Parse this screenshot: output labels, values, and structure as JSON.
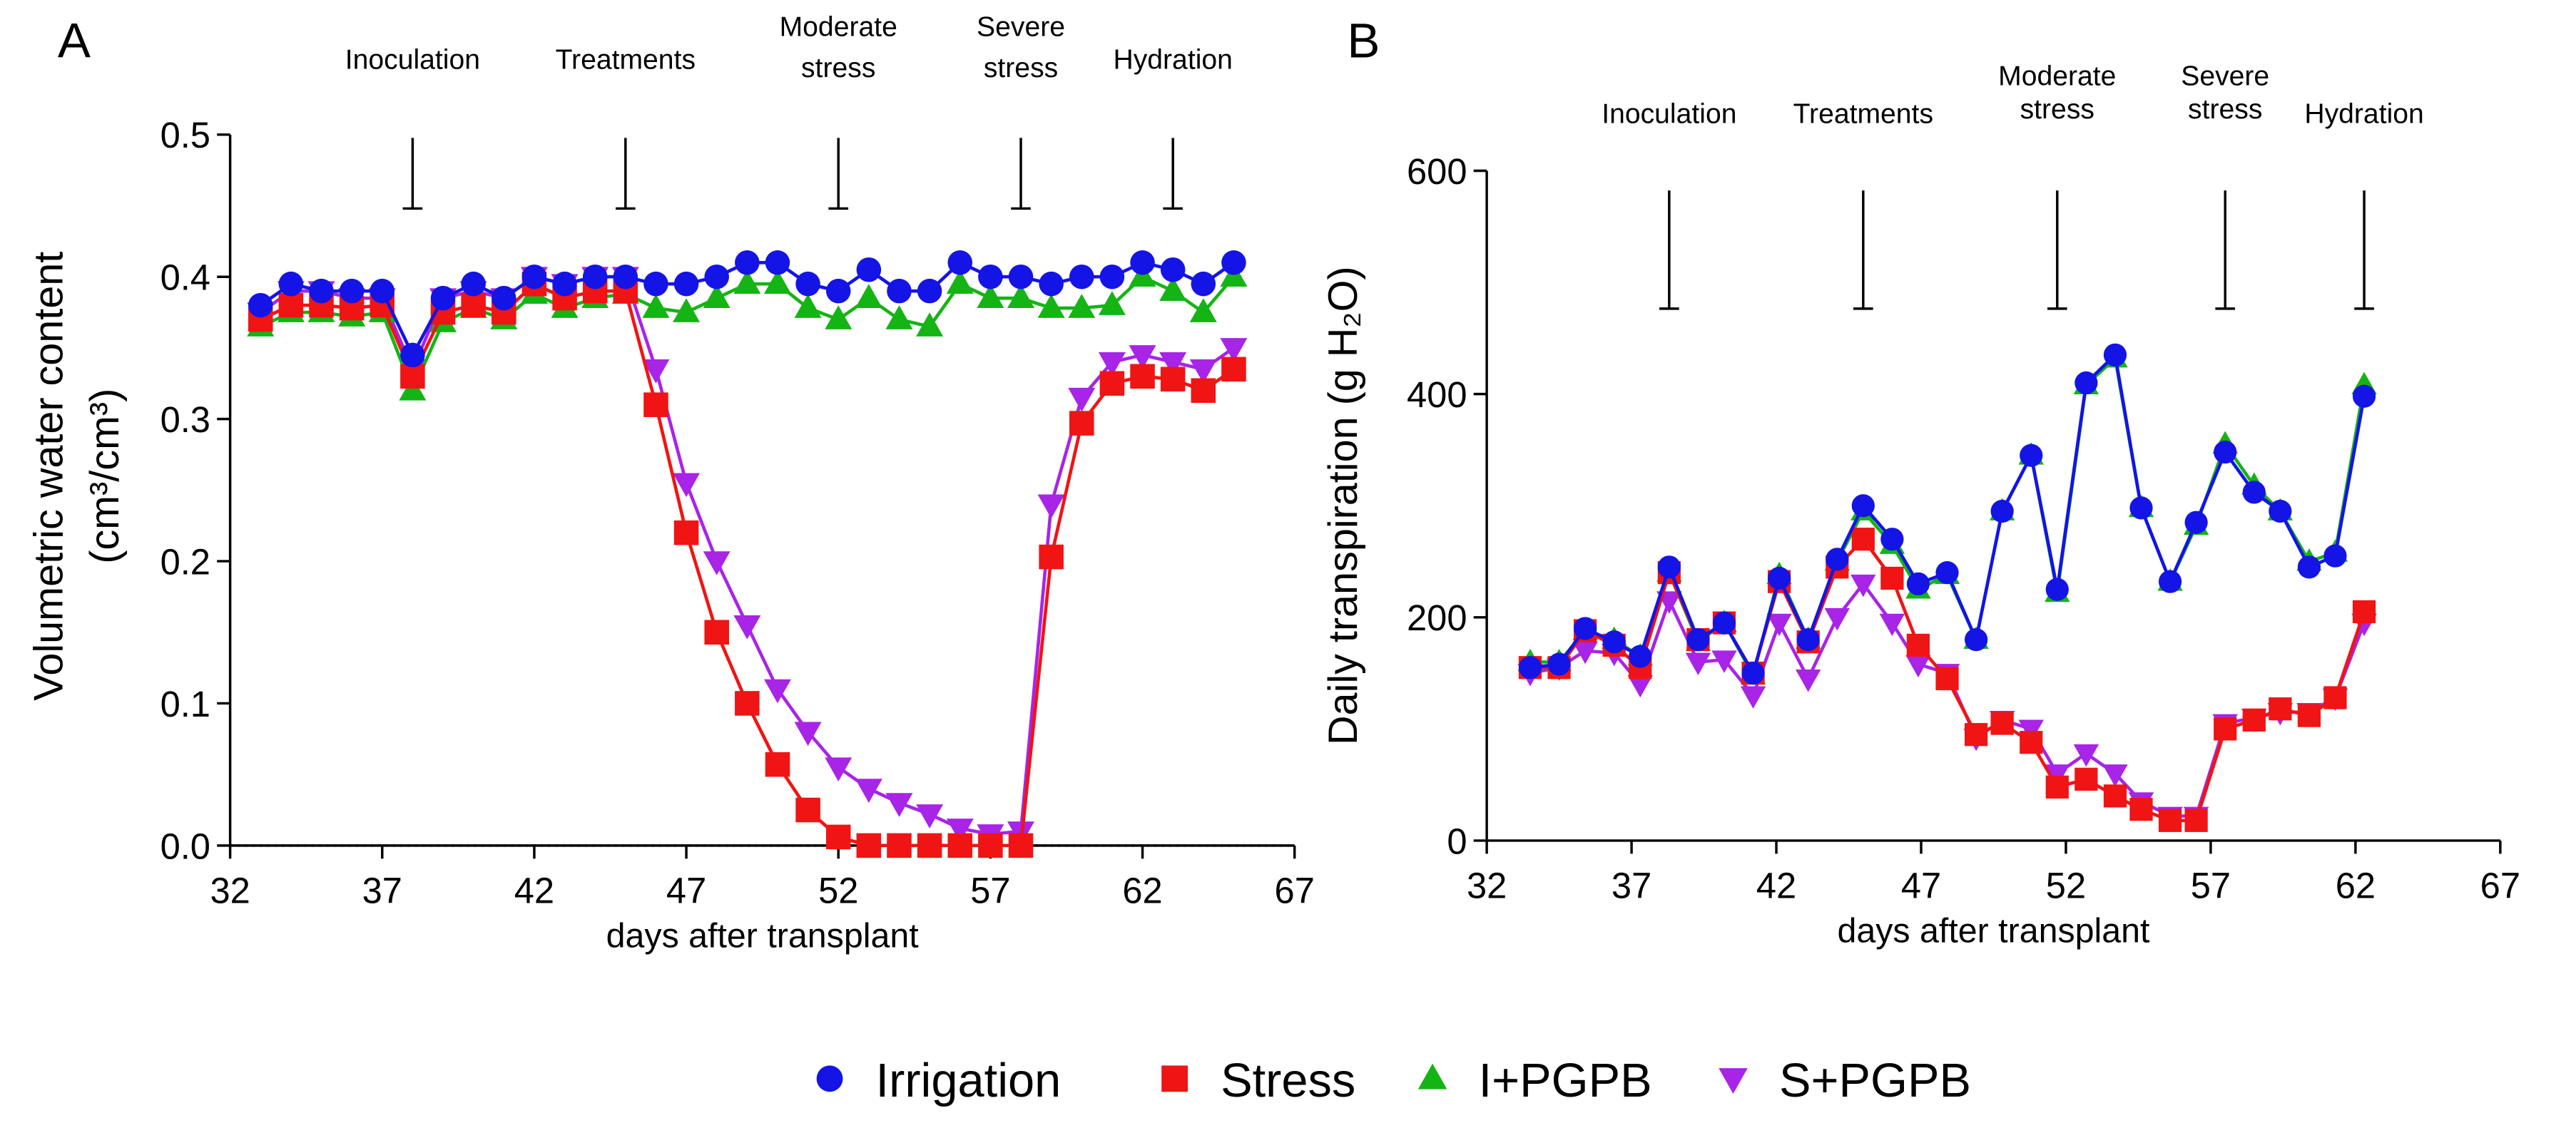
{
  "chart_data": [
    {
      "type": "line",
      "panel": "A",
      "x_label": "days after transplant",
      "y_label": [
        "Volumetric water content",
        "(cm³/cm³)"
      ],
      "xlim": [
        32,
        67
      ],
      "xticks": [
        32,
        37,
        42,
        47,
        52,
        57,
        62,
        67
      ],
      "ylim": [
        0,
        0.5
      ],
      "yticks": [
        {
          "value": 0,
          "label": "0.0"
        },
        0.1,
        0.2,
        0.3,
        0.4,
        0.5
      ],
      "annotations": [
        {
          "lines": [
            "Inoculation"
          ],
          "x": 38
        },
        {
          "lines": [
            "Treatments"
          ],
          "x": 45
        },
        {
          "lines": [
            "Moderate",
            "stress"
          ],
          "x": 52
        },
        {
          "lines": [
            "Severe",
            "stress"
          ],
          "x": 58
        },
        {
          "lines": [
            "Hydration"
          ],
          "x": 63
        }
      ],
      "x": [
        33,
        34,
        35,
        36,
        37,
        38,
        39,
        40,
        41,
        42,
        43,
        44,
        45,
        46,
        47,
        48,
        49,
        50,
        51,
        52,
        53,
        54,
        55,
        56,
        57,
        58,
        59,
        60,
        61,
        62,
        63,
        64,
        65
      ],
      "series": [
        {
          "name": "Irrigation",
          "color": "#1414e6",
          "marker": "circle",
          "values": [
            0.38,
            0.395,
            0.39,
            0.39,
            0.39,
            0.345,
            0.385,
            0.395,
            0.385,
            0.4,
            0.395,
            0.4,
            0.4,
            0.395,
            0.395,
            0.4,
            0.41,
            0.41,
            0.395,
            0.39,
            0.405,
            0.39,
            0.39,
            0.41,
            0.4,
            0.4,
            0.395,
            0.4,
            0.4,
            0.41,
            0.405,
            0.395,
            0.41
          ]
        },
        {
          "name": "Stress",
          "color": "#f01414",
          "marker": "square",
          "values": [
            0.37,
            0.38,
            0.38,
            0.378,
            0.38,
            0.33,
            0.375,
            0.38,
            0.375,
            0.395,
            0.385,
            0.39,
            0.39,
            0.31,
            0.22,
            0.15,
            0.1,
            0.057,
            0.025,
            0.006,
            0,
            0,
            0,
            0,
            0,
            0,
            0.203,
            0.297,
            0.325,
            0.33,
            0.328,
            0.32,
            0.335
          ]
        },
        {
          "name": "I+PGPB",
          "color": "#14b414",
          "marker": "triangle-up",
          "values": [
            0.365,
            0.375,
            0.375,
            0.372,
            0.375,
            0.32,
            0.368,
            0.378,
            0.37,
            0.388,
            0.378,
            0.385,
            0.388,
            0.378,
            0.375,
            0.385,
            0.395,
            0.395,
            0.378,
            0.37,
            0.385,
            0.37,
            0.365,
            0.395,
            0.385,
            0.385,
            0.378,
            0.378,
            0.38,
            0.4,
            0.39,
            0.375,
            0.4
          ]
        },
        {
          "name": "S+PGPB",
          "color": "#a824e6",
          "marker": "triangle-down",
          "values": [
            0.375,
            0.39,
            0.39,
            0.385,
            0.385,
            0.335,
            0.385,
            0.39,
            0.385,
            0.4,
            0.395,
            0.4,
            0.4,
            0.335,
            0.255,
            0.2,
            0.155,
            0.11,
            0.08,
            0.055,
            0.04,
            0.03,
            0.022,
            0.012,
            0.008,
            0.01,
            0.24,
            0.315,
            0.34,
            0.345,
            0.34,
            0.335,
            0.35
          ]
        }
      ]
    },
    {
      "type": "line",
      "panel": "B",
      "x_label": "days after transplant",
      "y_label": [
        "Daily transpiration (g H₂O)"
      ],
      "xlim": [
        32,
        67
      ],
      "xticks": [
        32,
        37,
        42,
        47,
        52,
        57,
        62,
        67
      ],
      "ylim": [
        0,
        600
      ],
      "yticks": [
        0,
        200,
        400,
        600
      ],
      "annotations": [
        {
          "lines": [
            "Inoculation"
          ],
          "x": 38.3
        },
        {
          "lines": [
            "Treatments"
          ],
          "x": 45.0
        },
        {
          "lines": [
            "Moderate",
            "stress"
          ],
          "x": 51.7
        },
        {
          "lines": [
            "Severe",
            "stress"
          ],
          "x": 57.5
        },
        {
          "lines": [
            "Hydration"
          ],
          "x": 62.3
        }
      ],
      "x": [
        33.5,
        34.5,
        35.4,
        36.4,
        37.3,
        38.3,
        39.3,
        40.2,
        41.2,
        42.1,
        43.1,
        44.1,
        45.0,
        46.0,
        46.9,
        47.9,
        48.9,
        49.8,
        50.8,
        51.7,
        52.7,
        53.7,
        54.6,
        55.6,
        56.5,
        57.5,
        58.5,
        59.4,
        60.4,
        61.3,
        62.3
      ],
      "series": [
        {
          "color": "#1414e6",
          "marker": "circle",
          "values": [
            155,
            158,
            190,
            178,
            165,
            245,
            180,
            195,
            150,
            235,
            180,
            252,
            300,
            270,
            230,
            240,
            180,
            295,
            345,
            225,
            410,
            435,
            298,
            232,
            285,
            348,
            312,
            295,
            245,
            255,
            398
          ]
        },
        {
          "color": "#f01414",
          "marker": "square",
          "values": [
            155,
            155,
            188,
            175,
            155,
            240,
            180,
            195,
            150,
            232,
            178,
            245,
            270,
            235,
            175,
            145,
            95,
            105,
            88,
            48,
            55,
            40,
            28,
            18,
            18,
            100,
            108,
            118,
            112,
            128,
            205
          ]
        },
        {
          "color": "#14b414",
          "marker": "triangle-up",
          "values": [
            160,
            160,
            188,
            180,
            165,
            240,
            178,
            195,
            148,
            238,
            180,
            250,
            295,
            265,
            225,
            238,
            180,
            295,
            345,
            222,
            408,
            432,
            298,
            232,
            282,
            355,
            318,
            295,
            250,
            258,
            408
          ]
        },
        {
          "color": "#a824e6",
          "marker": "triangle-down",
          "values": [
            150,
            155,
            170,
            168,
            140,
            215,
            160,
            162,
            130,
            195,
            145,
            200,
            230,
            195,
            158,
            150,
            92,
            108,
            100,
            60,
            78,
            60,
            35,
            22,
            22,
            105,
            110,
            115,
            115,
            128,
            195
          ]
        }
      ]
    }
  ]
}
